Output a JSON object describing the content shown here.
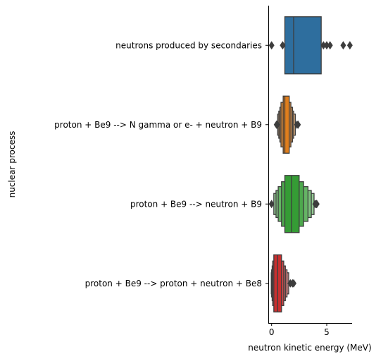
{
  "chart_data": {
    "type": "boxen",
    "orientation": "horizontal",
    "xlabel": "neutron kinetic energy (MeV)",
    "ylabel": "nuclear process",
    "xlim": [
      -0.3,
      7.3
    ],
    "xticks": [
      0,
      5
    ],
    "grid": false,
    "legend": "none",
    "categories": [
      "neutrons produced by secondaries",
      "proton + Be9 --> N gamma or e- + neutron + B9",
      "proton + Be9 --> neutron + B9",
      "proton + Be9 --> proton + neutron + Be8"
    ],
    "series": [
      {
        "color": "#2e6e9e",
        "median": 2.0,
        "boxes": [
          [
            1.2,
            4.5
          ]
        ],
        "outliers": [
          0.0,
          1.0,
          4.7,
          5.0,
          5.3,
          6.5,
          7.1
        ]
      },
      {
        "color": "#e07e1c",
        "median": 1.2,
        "boxes": [
          [
            1.05,
            1.6
          ],
          [
            0.85,
            1.75
          ],
          [
            0.75,
            1.9
          ],
          [
            0.65,
            2.0
          ],
          [
            0.55,
            2.15
          ]
        ],
        "outliers": [
          0.45,
          0.5,
          2.3,
          2.4
        ]
      },
      {
        "color": "#359c35",
        "median": 1.8,
        "boxes": [
          [
            1.2,
            2.5
          ],
          [
            0.9,
            2.9
          ],
          [
            0.6,
            3.3
          ],
          [
            0.4,
            3.6
          ],
          [
            0.2,
            3.85
          ]
        ],
        "outliers": [
          0.0,
          3.95,
          4.05,
          4.1
        ]
      },
      {
        "color": "#c72f2f",
        "median": 0.55,
        "boxes": [
          [
            0.2,
            0.9
          ],
          [
            0.1,
            1.1
          ],
          [
            0.05,
            1.25
          ],
          [
            0.0,
            1.4
          ],
          [
            -0.03,
            1.55
          ]
        ],
        "outliers": [
          1.7,
          1.9,
          2.0
        ]
      }
    ]
  }
}
